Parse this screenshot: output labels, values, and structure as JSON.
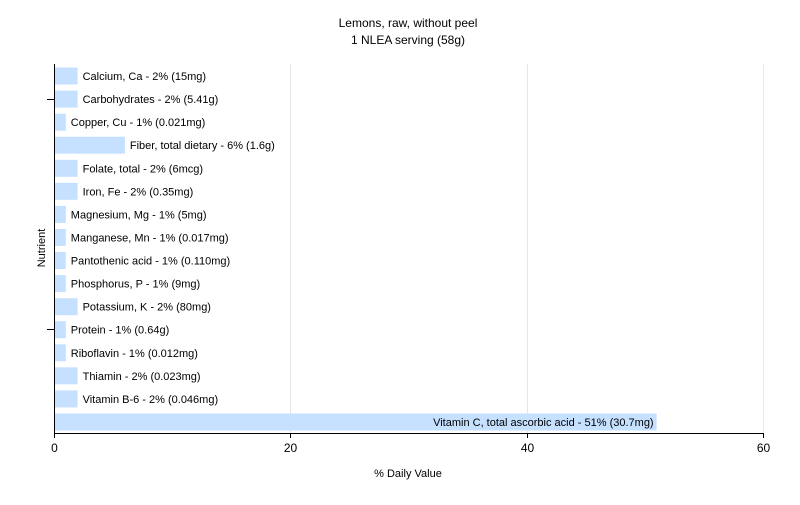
{
  "chart_data": {
    "type": "bar",
    "orientation": "horizontal",
    "title": "Lemons, raw, without peel",
    "subtitle": "1 NLEA serving (58g)",
    "xlabel": "% Daily Value",
    "ylabel": "Nutrient",
    "xlim": [
      0,
      60
    ],
    "xticks": [
      "0",
      "20",
      "40",
      "60"
    ],
    "grid": "vertical",
    "bar_color": "#c6e0ff",
    "categories": [
      "Calcium, Ca",
      "Carbohydrates",
      "Copper, Cu",
      "Fiber, total dietary",
      "Folate, total",
      "Iron, Fe",
      "Magnesium, Mg",
      "Manganese, Mn",
      "Pantothenic acid",
      "Phosphorus, P",
      "Potassium, K",
      "Protein",
      "Riboflavin",
      "Thiamin",
      "Vitamin B-6",
      "Vitamin C, total ascorbic acid"
    ],
    "values": [
      2,
      2,
      1,
      6,
      2,
      2,
      1,
      1,
      1,
      1,
      2,
      1,
      1,
      2,
      2,
      51
    ],
    "labels": [
      "Calcium, Ca - 2% (15mg)",
      "Carbohydrates - 2% (5.41g)",
      "Copper, Cu - 1% (0.021mg)",
      "Fiber, total dietary - 6% (1.6g)",
      "Folate, total - 2% (6mcg)",
      "Iron, Fe - 2% (0.35mg)",
      "Magnesium, Mg - 1% (5mg)",
      "Manganese, Mn - 1% (0.017mg)",
      "Pantothenic acid - 1% (0.110mg)",
      "Phosphorus, P - 1% (9mg)",
      "Potassium, K - 2% (80mg)",
      "Protein - 1% (0.64g)",
      "Riboflavin - 1% (0.012mg)",
      "Thiamin - 2% (0.023mg)",
      "Vitamin B-6 - 2% (0.046mg)",
      "Vitamin C, total ascorbic acid - 51% (30.7mg)"
    ]
  }
}
